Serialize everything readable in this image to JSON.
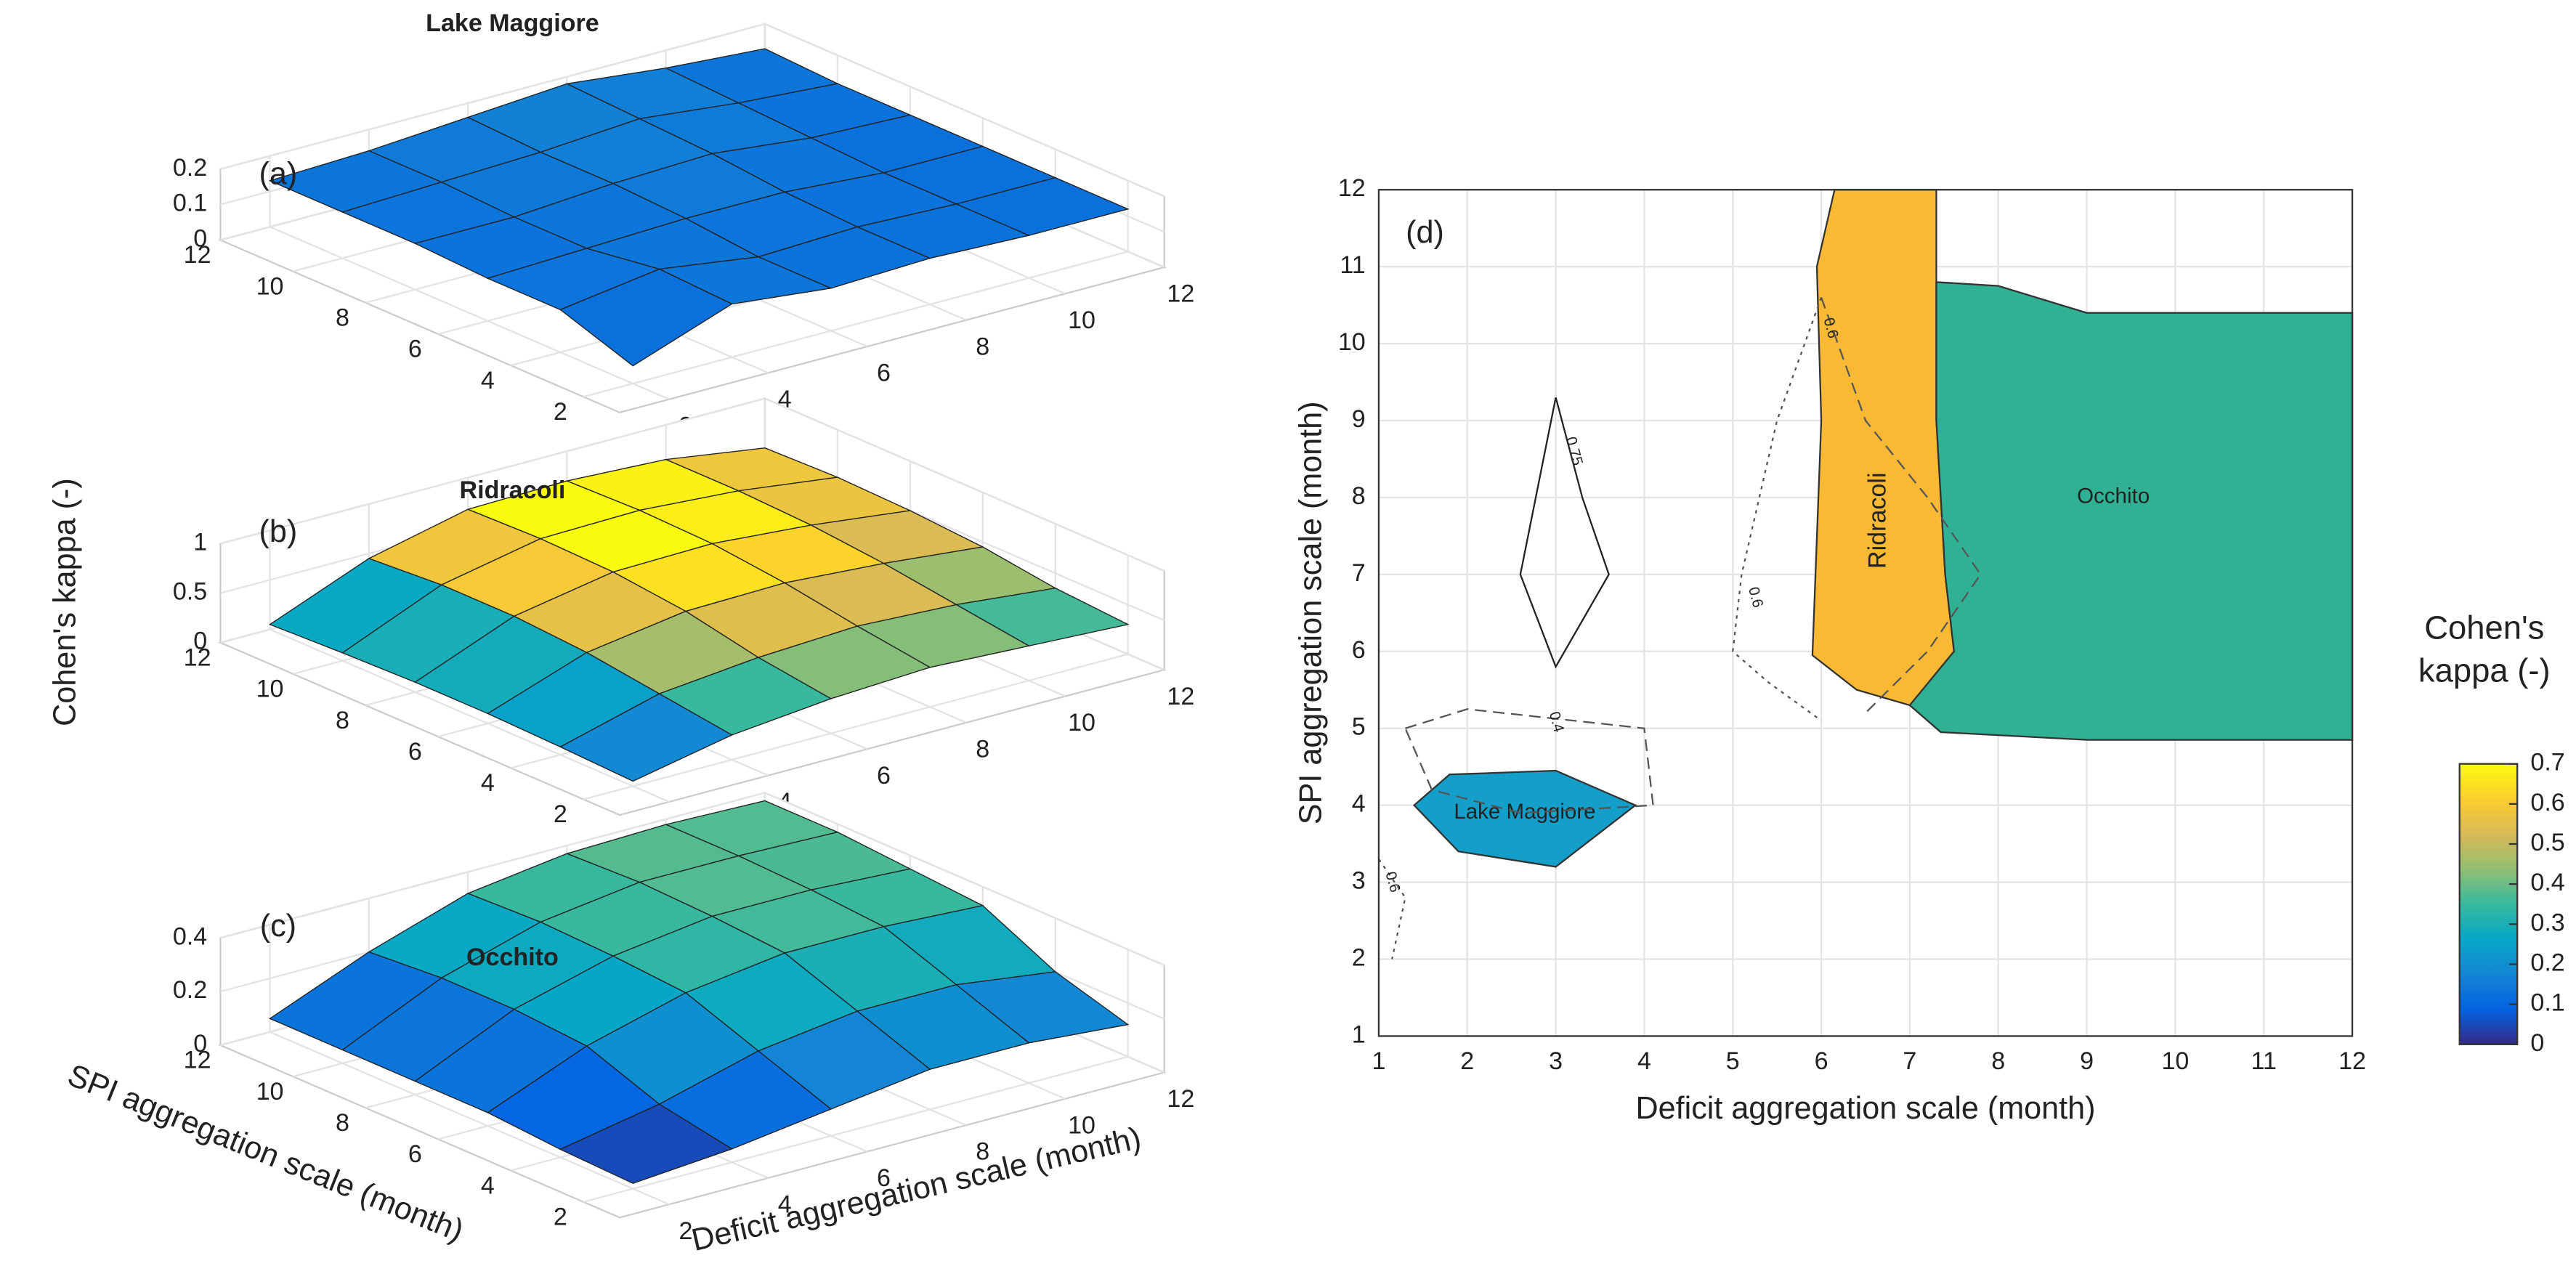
{
  "chart_data": [
    {
      "type": "surface",
      "title": "Lake Maggiore",
      "panel_label": "(a)",
      "xlim": [
        1,
        12
      ],
      "ylim": [
        1,
        12
      ],
      "zlim": [
        0,
        0.2
      ],
      "xticks": [
        2,
        4,
        6,
        8,
        10,
        12
      ],
      "yticks": [
        2,
        4,
        6,
        8,
        10,
        12
      ],
      "zticks": [
        0,
        0.1,
        0.2
      ],
      "x": [
        2,
        4,
        6,
        8,
        10,
        12
      ],
      "y": [
        2,
        4,
        6,
        8,
        10,
        12
      ],
      "z": [
        [
          0.05,
          0.15,
          0.12,
          0.13,
          0.12,
          0.12
        ],
        [
          0.12,
          0.16,
          0.12,
          0.13,
          0.12,
          0.12
        ],
        [
          0.12,
          0.13,
          0.14,
          0.14,
          0.12,
          0.12
        ],
        [
          0.13,
          0.13,
          0.15,
          0.16,
          0.13,
          0.12
        ],
        [
          0.13,
          0.14,
          0.15,
          0.17,
          0.14,
          0.12
        ],
        [
          0.13,
          0.14,
          0.16,
          0.18,
          0.15,
          0.13
        ]
      ]
    },
    {
      "type": "surface",
      "title": "Ridracoli",
      "panel_label": "(b)",
      "zlabel": "Cohen's kappa (-)",
      "xlim": [
        1,
        12
      ],
      "ylim": [
        1,
        12
      ],
      "zlim": [
        0,
        1
      ],
      "xticks": [
        2,
        4,
        6,
        8,
        10,
        12
      ],
      "yticks": [
        2,
        4,
        6,
        8,
        10,
        12
      ],
      "zticks": [
        0,
        0.5,
        1
      ],
      "x": [
        2,
        4,
        6,
        8,
        10,
        12
      ],
      "y": [
        2,
        4,
        6,
        8,
        10,
        12
      ],
      "z": [
        [
          0.05,
          0.25,
          0.35,
          0.4,
          0.35,
          0.3
        ],
        [
          0.08,
          0.35,
          0.45,
          0.5,
          0.45,
          0.35
        ],
        [
          0.1,
          0.45,
          0.6,
          0.62,
          0.55,
          0.45
        ],
        [
          0.1,
          0.5,
          0.68,
          0.7,
          0.62,
          0.5
        ],
        [
          0.08,
          0.5,
          0.7,
          0.72,
          0.65,
          0.52
        ],
        [
          0.05,
          0.45,
          0.68,
          0.7,
          0.65,
          0.5
        ]
      ]
    },
    {
      "type": "surface",
      "title": "Occhito",
      "panel_label": "(c)",
      "xlabel": "Deficit aggregation scale (month)",
      "ylabel": "SPI aggregation scale (month)",
      "xlim": [
        1,
        12
      ],
      "ylim": [
        1,
        12
      ],
      "zlim": [
        0,
        0.4
      ],
      "xticks": [
        2,
        4,
        6,
        8,
        10,
        12
      ],
      "yticks": [
        2,
        4,
        6,
        8,
        10,
        12
      ],
      "zticks": [
        0,
        0.2,
        0.4
      ],
      "x": [
        2,
        4,
        6,
        8,
        10,
        12
      ],
      "y": [
        2,
        4,
        6,
        8,
        10,
        12
      ],
      "z": [
        [
          0.02,
          0.05,
          0.1,
          0.15,
          0.15,
          0.12
        ],
        [
          0.03,
          0.1,
          0.2,
          0.25,
          0.25,
          0.2
        ],
        [
          0.05,
          0.2,
          0.3,
          0.35,
          0.35,
          0.33
        ],
        [
          0.05,
          0.22,
          0.32,
          0.37,
          0.37,
          0.35
        ],
        [
          0.05,
          0.22,
          0.33,
          0.38,
          0.38,
          0.37
        ],
        [
          0.05,
          0.2,
          0.32,
          0.37,
          0.38,
          0.37
        ]
      ]
    },
    {
      "type": "contour",
      "panel_label": "(d)",
      "xlabel": "Deficit aggregation scale (month)",
      "ylabel": "SPI aggregation scale (month)",
      "xlim": [
        1,
        12
      ],
      "ylim": [
        1,
        12
      ],
      "xticks": [
        1,
        2,
        3,
        4,
        5,
        6,
        7,
        8,
        9,
        10,
        11,
        12
      ],
      "yticks": [
        1,
        2,
        3,
        4,
        5,
        6,
        7,
        8,
        9,
        10,
        11,
        12
      ],
      "grid": true,
      "regions": [
        {
          "name": "Lake Maggiore",
          "color": "#139fca",
          "label_at": [
            2.65,
            3.9
          ],
          "points": [
            [
              1.4,
              4
            ],
            [
              1.8,
              4.4
            ],
            [
              3,
              4.45
            ],
            [
              3.9,
              4
            ],
            [
              3,
              3.2
            ],
            [
              1.9,
              3.4
            ]
          ]
        },
        {
          "name": "Ridracoli",
          "color": "#f9b934",
          "label_at": [
            6.65,
            7.7
          ],
          "vertical": true,
          "points": [
            [
              6.15,
              12
            ],
            [
              7.3,
              12
            ],
            [
              7.3,
              9
            ],
            [
              7.4,
              7
            ],
            [
              7.5,
              6
            ],
            [
              7,
              5.3
            ],
            [
              6.4,
              5.5
            ],
            [
              5.9,
              5.95
            ],
            [
              6,
              9
            ],
            [
              5.95,
              11
            ],
            [
              6.15,
              12
            ]
          ]
        },
        {
          "name": "Occhito",
          "color": "#30b194",
          "label_at": [
            9.3,
            8
          ],
          "points": [
            [
              7.3,
              10.8
            ],
            [
              8,
              10.75
            ],
            [
              9,
              10.4
            ],
            [
              12,
              10.4
            ],
            [
              12,
              4.85
            ],
            [
              9,
              4.85
            ],
            [
              7.35,
              4.95
            ],
            [
              7,
              5.3
            ],
            [
              7.5,
              6
            ],
            [
              7.4,
              7
            ],
            [
              7.3,
              9
            ]
          ]
        }
      ],
      "contours": [
        {
          "level": 0.75,
          "style": "solid",
          "label_at": [
            3.2,
            8.6
          ],
          "points": [
            [
              3,
              9.3
            ],
            [
              3.3,
              8
            ],
            [
              3.6,
              7
            ],
            [
              3,
              5.8
            ],
            [
              2.6,
              7
            ],
            [
              3,
              9.3
            ]
          ]
        },
        {
          "level": 0.4,
          "style": "dashed",
          "label_at": [
            3,
            5.08
          ],
          "points": [
            [
              1.3,
              5
            ],
            [
              2,
              5.25
            ],
            [
              4,
              5
            ],
            [
              4.1,
              4
            ],
            [
              2.6,
              3.9
            ],
            [
              1.6,
              4.2
            ],
            [
              1.3,
              5
            ]
          ]
        },
        {
          "level": 0.6,
          "style": "dotted",
          "label_at": [
            5.25,
            6.7
          ],
          "points": [
            [
              6,
              10.6
            ],
            [
              5.5,
              9
            ],
            [
              5.1,
              7
            ],
            [
              5,
              6
            ],
            [
              5.4,
              5.6
            ],
            [
              6,
              5.1
            ]
          ]
        },
        {
          "level": 0.6,
          "style": "dashed",
          "label_at": [
            6.1,
            10.2
          ],
          "points": [
            [
              6,
              10.6
            ],
            [
              6.5,
              9
            ],
            [
              7.2,
              8
            ],
            [
              7.8,
              7
            ],
            [
              7.2,
              6
            ],
            [
              6.5,
              5.2
            ]
          ]
        },
        {
          "level": 0.6,
          "style": "dotted",
          "label_at": [
            1.15,
            3
          ],
          "points": [
            [
              1,
              3.3
            ],
            [
              1.3,
              2.8
            ],
            [
              1.15,
              2
            ]
          ]
        }
      ]
    },
    {
      "type": "colorbar",
      "title": "Cohen's kappa (-)",
      "clim": [
        0,
        0.7
      ],
      "ticks": [
        0,
        0.1,
        0.2,
        0.3,
        0.4,
        0.5,
        0.6,
        0.7
      ],
      "colormap": [
        "#352a87",
        "#0363e1",
        "#1485d4",
        "#06a7c6",
        "#38b99e",
        "#92bf73",
        "#d9ba56",
        "#fcce2e",
        "#f9fb0e"
      ]
    }
  ]
}
